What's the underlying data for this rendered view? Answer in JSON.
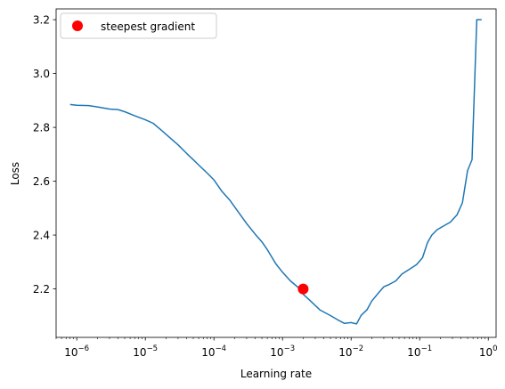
{
  "chart_data": {
    "type": "line",
    "xscale": "log",
    "xlabel": "Learning rate",
    "ylabel": "Loss",
    "xlim": [
      5e-07,
      1.3
    ],
    "ylim": [
      2.02,
      3.24
    ],
    "grid": false,
    "legend_position": "top-left",
    "x_ticks": [
      {
        "value": 1e-06,
        "base": "10",
        "exp": "−6"
      },
      {
        "value": 1e-05,
        "base": "10",
        "exp": "−5"
      },
      {
        "value": 0.0001,
        "base": "10",
        "exp": "−4"
      },
      {
        "value": 0.001,
        "base": "10",
        "exp": "−3"
      },
      {
        "value": 0.01,
        "base": "10",
        "exp": "−2"
      },
      {
        "value": 0.1,
        "base": "10",
        "exp": "−1"
      },
      {
        "value": 1,
        "base": "10",
        "exp": "0"
      }
    ],
    "y_ticks": [
      {
        "value": 2.2,
        "label": "2.2"
      },
      {
        "value": 2.4,
        "label": "2.4"
      },
      {
        "value": 2.6,
        "label": "2.6"
      },
      {
        "value": 2.8,
        "label": "2.8"
      },
      {
        "value": 3.0,
        "label": "3.0"
      },
      {
        "value": 3.2,
        "label": "3.2"
      }
    ],
    "series": [
      {
        "color": "#1f77b4",
        "x": [
          8e-07,
          1e-06,
          1.5e-06,
          2e-06,
          3e-06,
          4e-06,
          5e-06,
          7e-06,
          1e-05,
          1.3e-05,
          1.7e-05,
          2.2e-05,
          3e-05,
          4e-05,
          5e-05,
          6e-05,
          8e-05,
          0.0001,
          0.00013,
          0.00017,
          0.00022,
          0.0003,
          0.0004,
          0.0005,
          0.0006,
          0.0008,
          0.001,
          0.0013,
          0.0017,
          0.002,
          0.0025,
          0.0035,
          0.005,
          0.0065,
          0.008,
          0.01,
          0.012,
          0.014,
          0.017,
          0.02,
          0.025,
          0.03,
          0.035,
          0.045,
          0.055,
          0.07,
          0.09,
          0.11,
          0.13,
          0.15,
          0.18,
          0.22,
          0.28,
          0.35,
          0.42,
          0.5,
          0.58,
          0.68,
          0.8
        ],
        "y": [
          2.885,
          2.882,
          2.881,
          2.876,
          2.868,
          2.866,
          2.858,
          2.843,
          2.828,
          2.815,
          2.79,
          2.765,
          2.735,
          2.703,
          2.68,
          2.66,
          2.63,
          2.605,
          2.563,
          2.53,
          2.49,
          2.443,
          2.403,
          2.375,
          2.346,
          2.293,
          2.262,
          2.23,
          2.205,
          2.18,
          2.158,
          2.122,
          2.101,
          2.084,
          2.072,
          2.075,
          2.07,
          2.102,
          2.122,
          2.155,
          2.185,
          2.208,
          2.215,
          2.23,
          2.255,
          2.272,
          2.29,
          2.316,
          2.372,
          2.4,
          2.42,
          2.433,
          2.448,
          2.475,
          2.52,
          2.64,
          2.68,
          3.2,
          3.2
        ]
      }
    ],
    "markers": [
      {
        "label": "steepest gradient",
        "x": 0.002,
        "y": 2.2,
        "color": "#ff0000"
      }
    ]
  }
}
